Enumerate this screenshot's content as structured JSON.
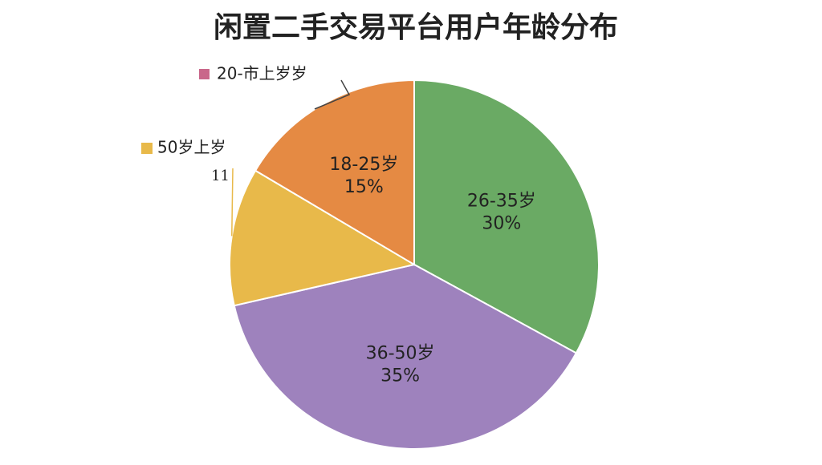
{
  "chart_data": {
    "type": "pie",
    "title": "闲置二手交易平台用户年龄分布",
    "categories": [
      "26-35岁",
      "36-50岁",
      "50岁上岁",
      "18-25岁"
    ],
    "values": [
      30,
      35,
      11,
      15
    ],
    "value_labels": [
      "30%",
      "35%",
      "11",
      "15%"
    ],
    "colors": [
      "#6aaa64",
      "#9e82bd",
      "#e8b94a",
      "#e58a43"
    ],
    "annotations": [
      {
        "text": "20-市上岁岁",
        "color": "#c9678a"
      }
    ]
  }
}
